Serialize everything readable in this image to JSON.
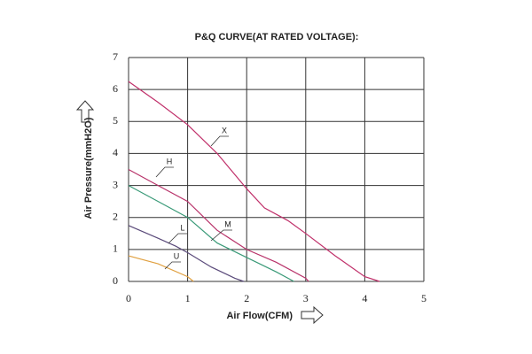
{
  "chart_data": {
    "type": "line",
    "title": "P&Q CURVE(AT RATED VOLTAGE):",
    "xlabel": "Air Flow(CFM)",
    "ylabel": "Air Pressure(mmH2O)",
    "xlim": [
      0,
      5
    ],
    "ylim": [
      0,
      7
    ],
    "xticks": [
      0,
      1,
      2,
      3,
      4,
      5
    ],
    "yticks": [
      0,
      1,
      2,
      3,
      4,
      5,
      6,
      7
    ],
    "grid": true,
    "series": [
      {
        "name": "X",
        "color": "#c0306a",
        "x": [
          0,
          0.5,
          1,
          1.5,
          2,
          2.3,
          2.7,
          3,
          3.5,
          4,
          4.25
        ],
        "values": [
          6.25,
          5.6,
          4.9,
          4.0,
          2.9,
          2.3,
          1.9,
          1.5,
          0.8,
          0.15,
          0
        ]
      },
      {
        "name": "H",
        "color": "#b8336a",
        "x": [
          0,
          0.5,
          1,
          1.5,
          2,
          2.5,
          3,
          3.05
        ],
        "values": [
          3.5,
          3.0,
          2.5,
          1.6,
          1.0,
          0.6,
          0.1,
          0
        ]
      },
      {
        "name": "M",
        "color": "#3a9a78",
        "x": [
          0,
          0.5,
          1,
          1.5,
          2,
          2.5,
          2.8
        ],
        "values": [
          3.0,
          2.5,
          2.0,
          1.2,
          0.75,
          0.3,
          0
        ]
      },
      {
        "name": "L",
        "color": "#5a4a7a",
        "x": [
          0,
          0.5,
          0.8,
          1,
          1.4,
          1.8,
          1.95
        ],
        "values": [
          1.75,
          1.35,
          1.1,
          0.9,
          0.45,
          0.1,
          0
        ]
      },
      {
        "name": "U",
        "color": "#e0a040",
        "x": [
          0,
          0.5,
          1,
          1.1
        ],
        "values": [
          0.8,
          0.55,
          0.15,
          0
        ]
      }
    ]
  }
}
